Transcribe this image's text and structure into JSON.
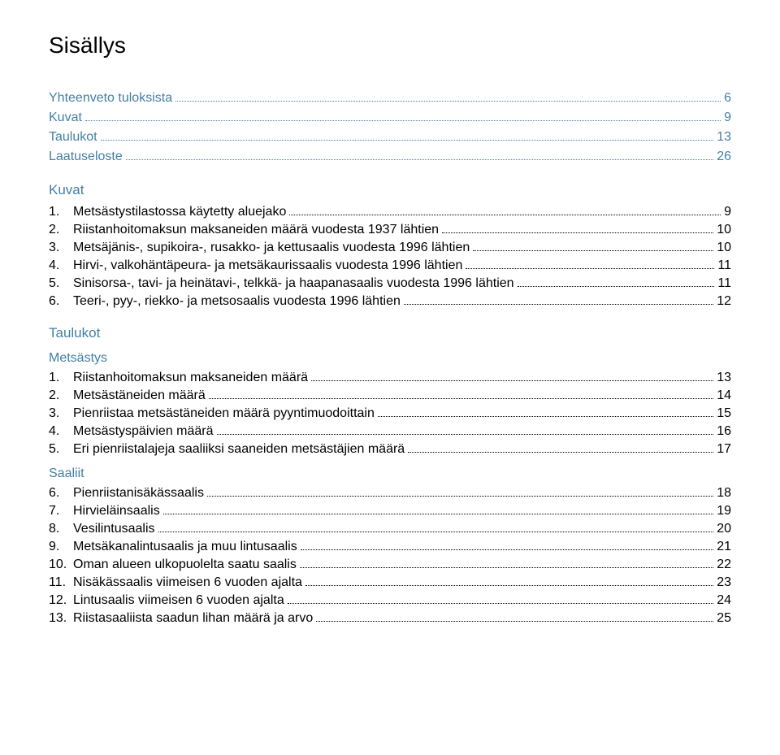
{
  "title": "Sisällys",
  "mainEntries": [
    {
      "label": "Yhteenveto tuloksista",
      "page": "6",
      "link": true
    },
    {
      "label": "Kuvat",
      "page": "9",
      "link": true
    },
    {
      "label": "Taulukot",
      "page": "13",
      "link": true
    },
    {
      "label": "Laatuseloste",
      "page": "26",
      "link": true
    }
  ],
  "kuvat": {
    "heading": "Kuvat",
    "items": [
      {
        "num": "1.",
        "label": "Metsästystilastossa käytetty aluejako",
        "page": "9"
      },
      {
        "num": "2.",
        "label": "Riistanhoitomaksun maksaneiden määrä vuodesta 1937 lähtien",
        "page": "10"
      },
      {
        "num": "3.",
        "label": "Metsäjänis-, supikoira-, rusakko- ja kettusaalis vuodesta 1996 lähtien",
        "page": "10"
      },
      {
        "num": "4.",
        "label": "Hirvi-, valkohäntäpeura- ja metsäkaurissaalis vuodesta 1996 lähtien",
        "page": "11"
      },
      {
        "num": "5.",
        "label": "Sinisorsa-, tavi- ja heinätavi-, telkkä- ja haapanasaalis vuodesta 1996 lähtien",
        "page": "11"
      },
      {
        "num": "6.",
        "label": "Teeri-, pyy-, riekko- ja metsosaalis vuodesta 1996 lähtien",
        "page": "12"
      }
    ]
  },
  "taulukot": {
    "heading": "Taulukot",
    "groups": [
      {
        "subheading": "Metsästys",
        "items": [
          {
            "num": "1.",
            "label": "Riistanhoitomaksun maksaneiden määrä",
            "page": "13"
          },
          {
            "num": "2.",
            "label": "Metsästäneiden määrä",
            "page": "14"
          },
          {
            "num": "3.",
            "label": "Pienriistaa metsästäneiden määrä pyyntimuodoittain",
            "page": "15"
          },
          {
            "num": "4.",
            "label": "Metsästyspäivien määrä",
            "page": "16"
          },
          {
            "num": "5.",
            "label": "Eri pienriistalajeja saaliiksi saaneiden metsästäjien määrä",
            "page": "17"
          }
        ]
      },
      {
        "subheading": "Saaliit",
        "items": [
          {
            "num": "6.",
            "label": "Pienriistanisäkässaalis",
            "page": "18"
          },
          {
            "num": "7.",
            "label": "Hirvieläinsaalis",
            "page": "19"
          },
          {
            "num": "8.",
            "label": "Vesilintusaalis",
            "page": "20"
          },
          {
            "num": "9.",
            "label": "Metsäkanalintusaalis ja muu lintusaalis",
            "page": "21"
          },
          {
            "num": "10.",
            "label": "Oman alueen ulkopuolelta saatu saalis",
            "page": "22"
          },
          {
            "num": "11.",
            "label": "Nisäkässaalis viimeisen 6 vuoden ajalta",
            "page": "23"
          },
          {
            "num": "12.",
            "label": "Lintusaalis viimeisen 6 vuoden ajalta",
            "page": "24"
          },
          {
            "num": "13.",
            "label": "Riistasaaliista saadun lihan määrä ja arvo",
            "page": "25"
          }
        ]
      }
    ]
  },
  "colors": {
    "link": "#447fa4",
    "text": "#000000",
    "background": "#ffffff"
  }
}
